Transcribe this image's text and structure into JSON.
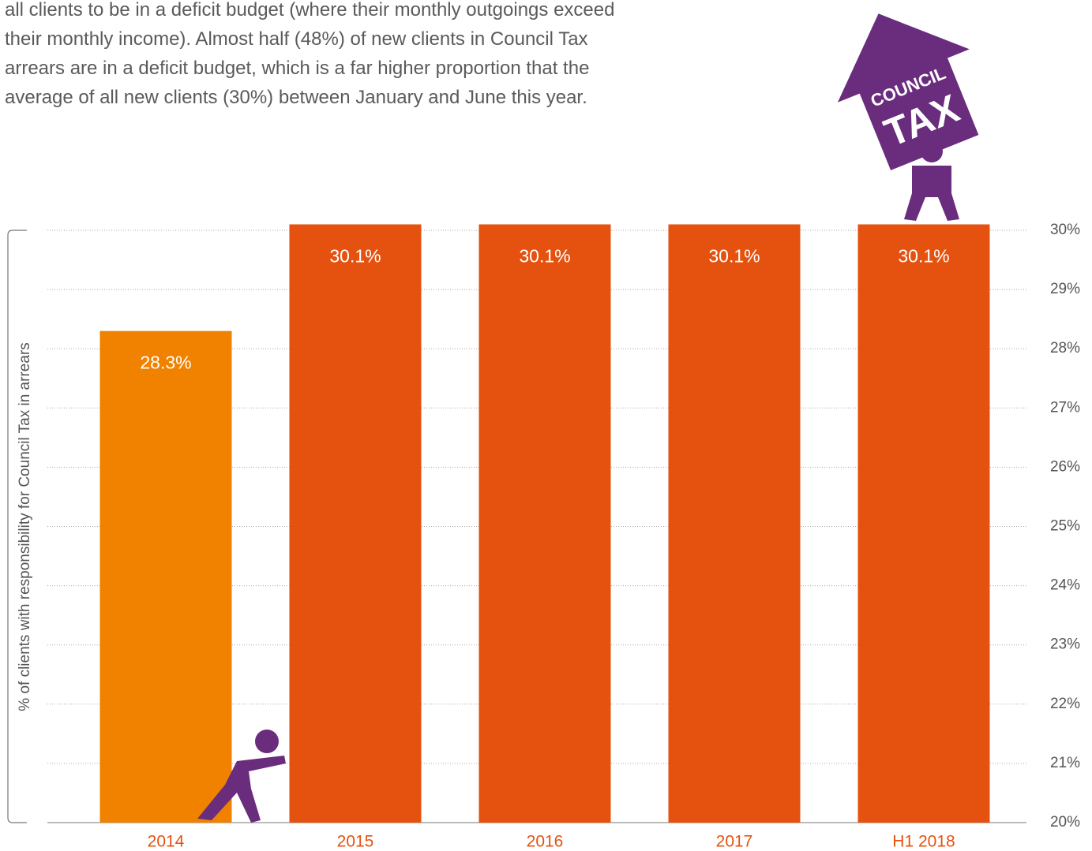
{
  "intro": [
    "all clients to be in a deficit budget (where their monthly outgoings exceed",
    "their monthly income). Almost half (48%) of new clients in Council Tax",
    "arrears are in a deficit budget, which is a far higher proportion that the",
    "average of all new clients (30%) between January and June this year."
  ],
  "badge": [
    "COUNCIL",
    "TAX"
  ],
  "chart_data": {
    "type": "bar",
    "y_label": "% of clients with responsibility for Council Tax in arrears",
    "categories": [
      "2014",
      "2015",
      "2016",
      "2017",
      "H1 2018"
    ],
    "values": [
      28.3,
      30.1,
      30.1,
      30.1,
      30.1
    ],
    "value_labels": [
      "28.3%",
      "30.1%",
      "30.1%",
      "30.1%",
      "30.1%"
    ],
    "colors": [
      "#f08200",
      "#e5520f",
      "#e5520f",
      "#e5520f",
      "#e5520f"
    ],
    "ylim": [
      20,
      30
    ],
    "yticks": [
      {
        "value": 20,
        "label": "20%"
      },
      {
        "value": 21,
        "label": "21%"
      },
      {
        "value": 22,
        "label": "22%"
      },
      {
        "value": 23,
        "label": "23%"
      },
      {
        "value": 24,
        "label": "24%"
      },
      {
        "value": 25,
        "label": "25%"
      },
      {
        "value": 26,
        "label": "26%"
      },
      {
        "value": 27,
        "label": "27%"
      },
      {
        "value": 28,
        "label": "28%"
      },
      {
        "value": 29,
        "label": "29%"
      },
      {
        "value": 30,
        "label": "30%"
      }
    ],
    "grid": true
  }
}
